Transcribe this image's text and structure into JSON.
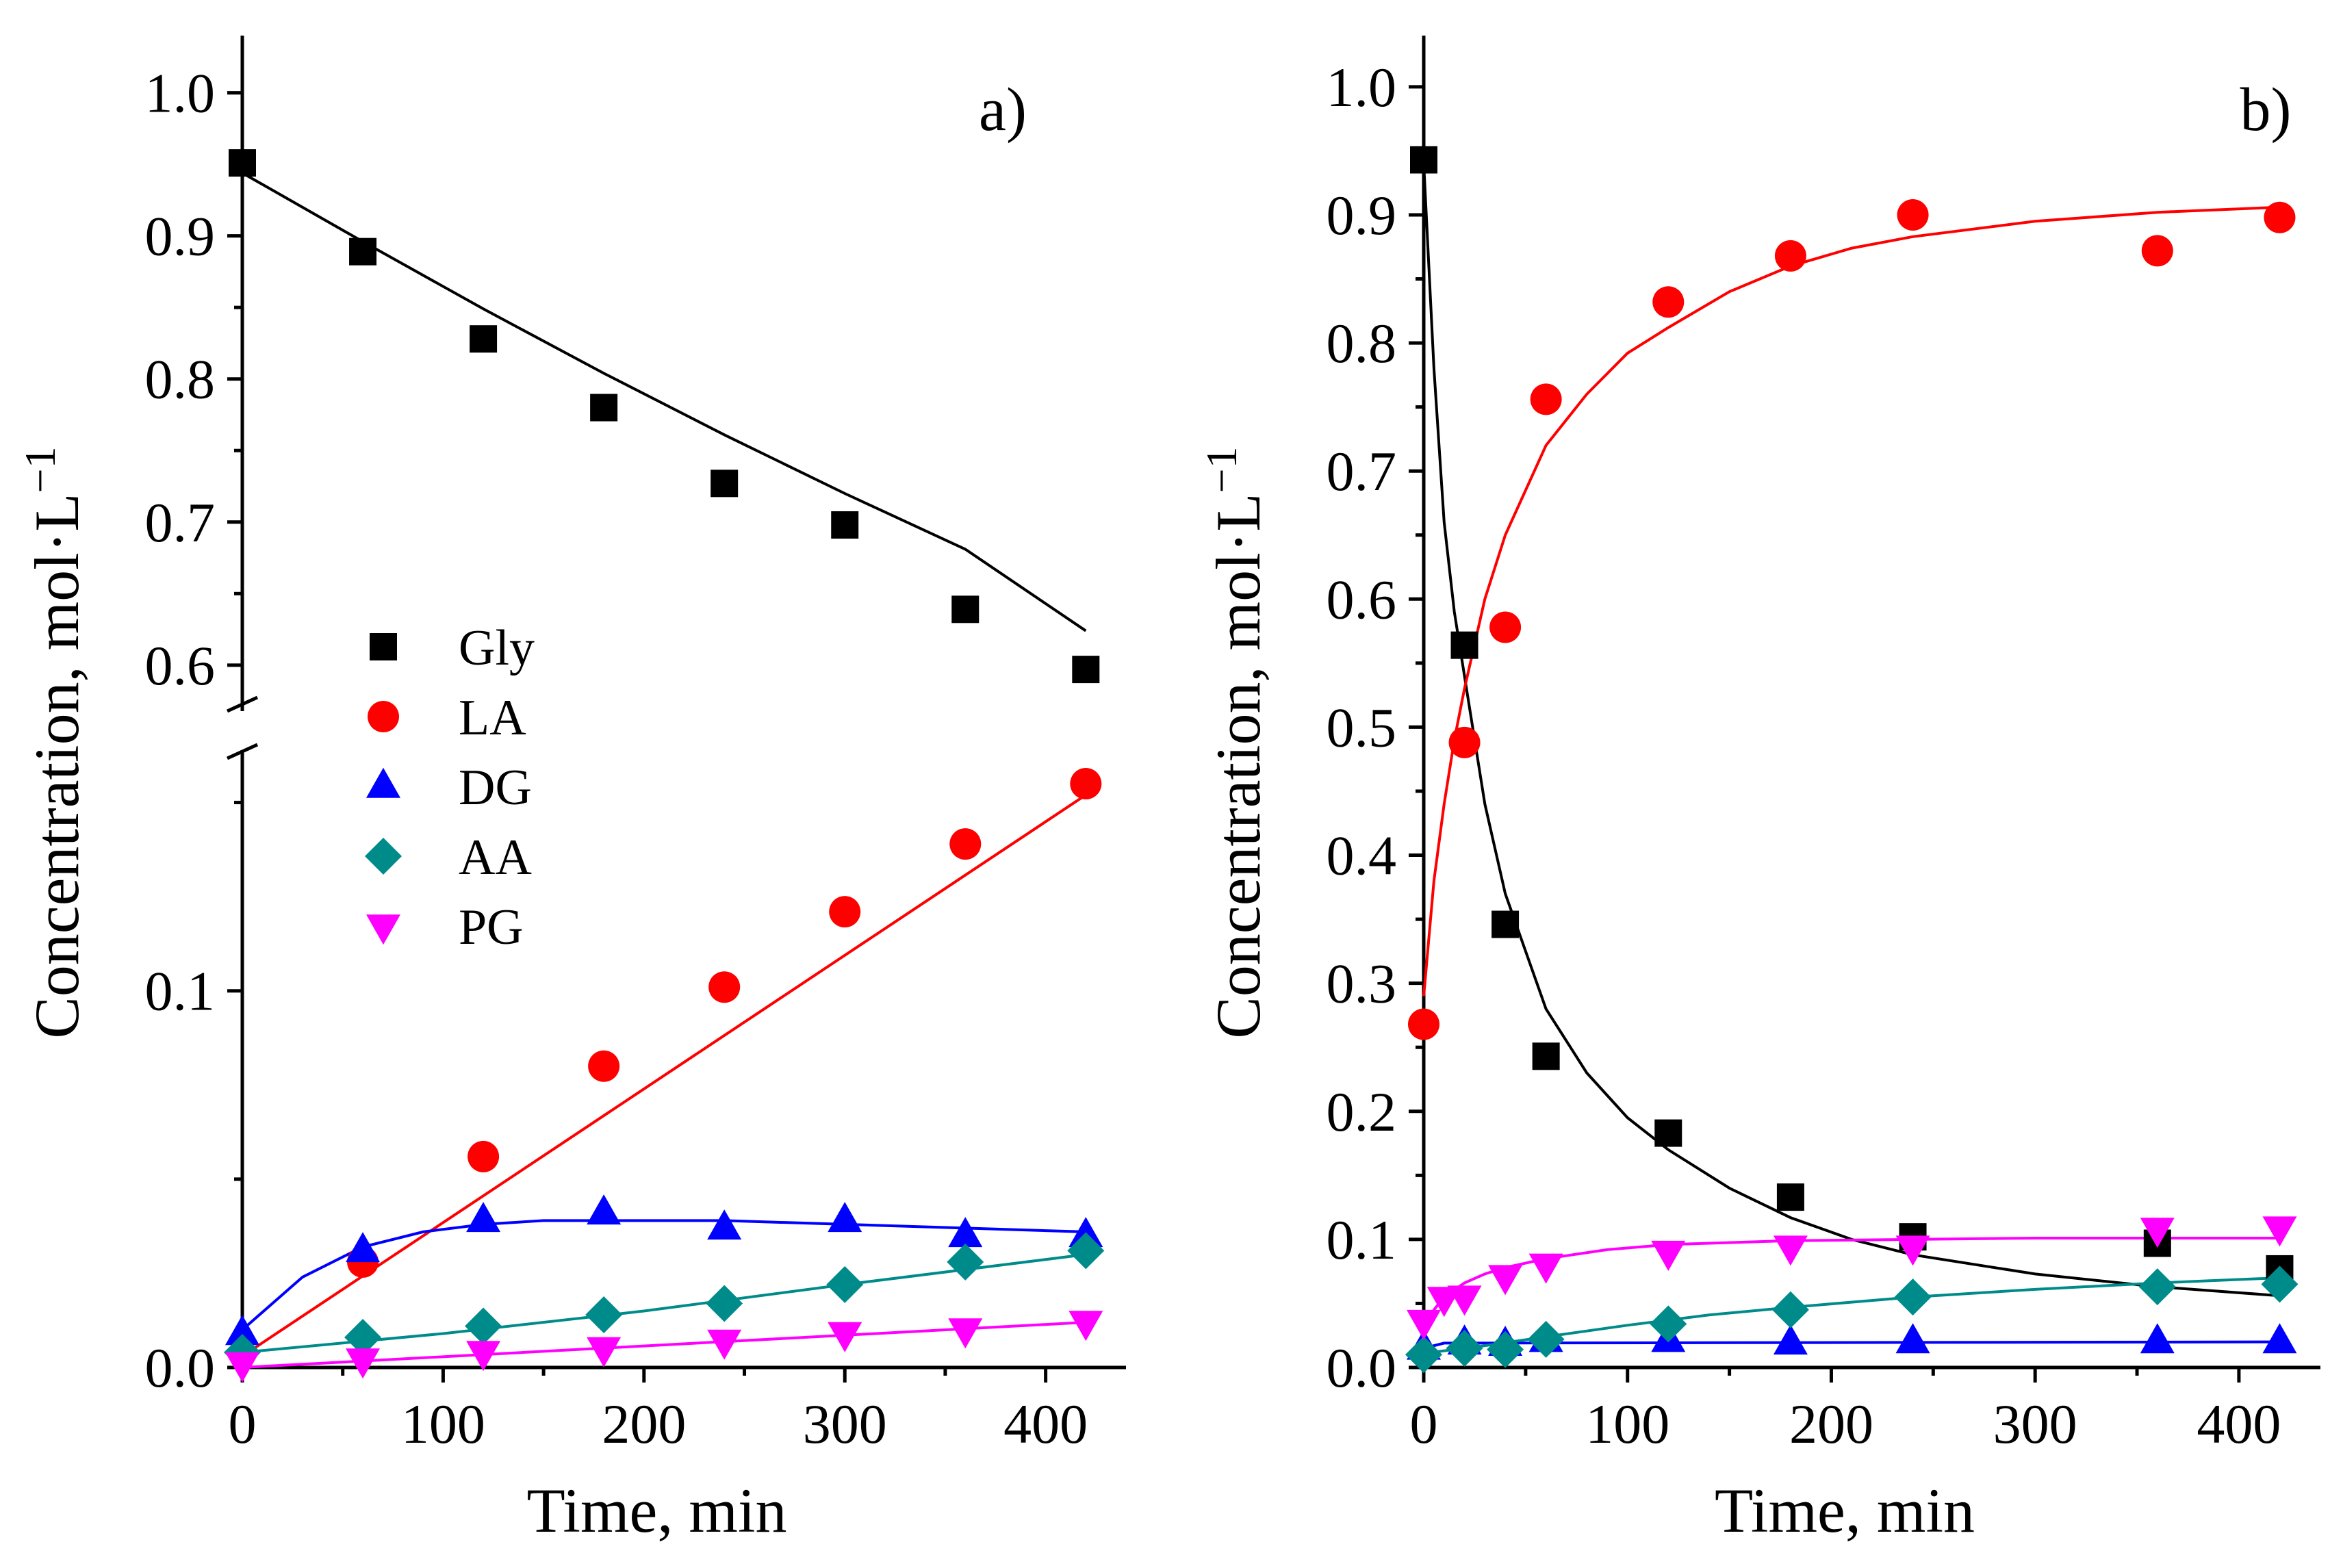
{
  "chart_data": [
    {
      "type": "scatter",
      "panel_label": "a)",
      "xlabel": "Time, min",
      "ylabel": "Concentration, mol·L",
      "ylabel_sup": "−1",
      "xlim": [
        0,
        440
      ],
      "ylim": [
        0,
        1.04
      ],
      "axis_break": [
        0.165,
        0.565
      ],
      "x_ticks": [
        0,
        100,
        200,
        300,
        400
      ],
      "x_tick_labels": [
        "0",
        "100",
        "200",
        "300",
        "400"
      ],
      "y_ticks": [
        0.0,
        0.1,
        0.6,
        0.7,
        0.8,
        0.9,
        1.0
      ],
      "y_tick_labels": [
        "0.0",
        "0.1",
        "0.6",
        "0.7",
        "0.8",
        "0.9",
        "1.0"
      ],
      "legend_position": "center-left",
      "series": [
        {
          "name": "Gly",
          "marker": "square",
          "color": "#000000",
          "x": [
            0,
            60,
            120,
            180,
            240,
            300,
            360,
            420
          ],
          "y": [
            0.951,
            0.889,
            0.828,
            0.78,
            0.727,
            0.698,
            0.639,
            0.597
          ],
          "fit_x": [
            0,
            60,
            120,
            180,
            240,
            300,
            360,
            420
          ],
          "fit_y": [
            0.944,
            0.896,
            0.849,
            0.804,
            0.761,
            0.72,
            0.681,
            0.624
          ]
        },
        {
          "name": "LA",
          "marker": "circle",
          "color": "#ff0000",
          "x": [
            60,
            120,
            180,
            240,
            300,
            360,
            420
          ],
          "y": [
            0.028,
            0.056,
            0.08,
            0.101,
            0.121,
            0.139,
            0.155
          ],
          "fit_x": [
            0,
            420
          ],
          "fit_y": [
            0.003,
            0.152
          ]
        },
        {
          "name": "DG",
          "marker": "triangle-up",
          "color": "#0000ff",
          "x": [
            0,
            60,
            120,
            180,
            240,
            300,
            360,
            420
          ],
          "y": [
            0.009,
            0.031,
            0.039,
            0.041,
            0.037,
            0.039,
            0.035,
            0.035
          ],
          "fit_x": [
            0,
            30,
            60,
            90,
            120,
            150,
            180,
            240,
            300,
            360,
            420
          ],
          "fit_y": [
            0.01,
            0.024,
            0.032,
            0.036,
            0.038,
            0.039,
            0.039,
            0.039,
            0.038,
            0.037,
            0.036
          ]
        },
        {
          "name": "AA",
          "marker": "diamond",
          "color": "#008b8b",
          "x": [
            0,
            60,
            120,
            180,
            240,
            300,
            360,
            420
          ],
          "y": [
            0.004,
            0.008,
            0.011,
            0.014,
            0.017,
            0.022,
            0.028,
            0.031
          ],
          "fit_x": [
            0,
            100,
            200,
            300,
            420
          ],
          "fit_y": [
            0.004,
            0.009,
            0.015,
            0.022,
            0.03
          ]
        },
        {
          "name": "PG",
          "marker": "triangle-down",
          "color": "#ff00ff",
          "x": [
            0,
            60,
            120,
            180,
            240,
            300,
            360,
            420
          ],
          "y": [
            0.001,
            0.002,
            0.004,
            0.005,
            0.007,
            0.009,
            0.01,
            0.012
          ],
          "fit_x": [
            0,
            420
          ],
          "fit_y": [
            0.0,
            0.012
          ]
        }
      ]
    },
    {
      "type": "scatter",
      "panel_label": "b)",
      "xlabel": "Time, min",
      "ylabel": "Concentration, mol·L",
      "ylabel_sup": "−1",
      "xlim": [
        0,
        440
      ],
      "ylim": [
        0,
        1.04
      ],
      "x_ticks": [
        0,
        100,
        200,
        300,
        400
      ],
      "x_tick_labels": [
        "0",
        "100",
        "200",
        "300",
        "400"
      ],
      "y_ticks": [
        0.0,
        0.1,
        0.2,
        0.3,
        0.4,
        0.5,
        0.6,
        0.7,
        0.8,
        0.9,
        1.0
      ],
      "y_tick_labels": [
        "0.0",
        "0.1",
        "0.2",
        "0.3",
        "0.4",
        "0.5",
        "0.6",
        "0.7",
        "0.8",
        "0.9",
        "1.0"
      ],
      "series": [
        {
          "name": "Gly",
          "marker": "square",
          "color": "#000000",
          "x": [
            0,
            20,
            40,
            60,
            120,
            180,
            240,
            360,
            420
          ],
          "y": [
            0.943,
            0.564,
            0.346,
            0.243,
            0.183,
            0.133,
            0.102,
            0.097,
            0.077
          ],
          "fit_x": [
            0,
            5,
            10,
            15,
            20,
            30,
            40,
            60,
            80,
            100,
            120,
            150,
            180,
            210,
            240,
            300,
            360,
            420
          ],
          "fit_y": [
            0.94,
            0.78,
            0.66,
            0.59,
            0.54,
            0.44,
            0.37,
            0.28,
            0.23,
            0.195,
            0.17,
            0.14,
            0.117,
            0.1,
            0.088,
            0.073,
            0.063,
            0.056
          ]
        },
        {
          "name": "LA",
          "marker": "circle",
          "color": "#ff0000",
          "x": [
            0,
            20,
            40,
            60,
            120,
            180,
            240,
            360,
            420
          ],
          "y": [
            0.268,
            0.488,
            0.578,
            0.756,
            0.832,
            0.868,
            0.9,
            0.872,
            0.898
          ],
          "fit_x": [
            0,
            5,
            10,
            15,
            20,
            30,
            40,
            60,
            80,
            100,
            120,
            150,
            180,
            210,
            240,
            300,
            360,
            420
          ],
          "fit_y": [
            0.29,
            0.38,
            0.44,
            0.49,
            0.53,
            0.6,
            0.65,
            0.72,
            0.76,
            0.792,
            0.812,
            0.84,
            0.86,
            0.874,
            0.883,
            0.895,
            0.902,
            0.906
          ]
        },
        {
          "name": "DG",
          "marker": "triangle-up",
          "color": "#0000ff",
          "x": [
            0,
            20,
            40,
            60,
            120,
            180,
            240,
            360,
            420
          ],
          "y": [
            0.015,
            0.019,
            0.018,
            0.021,
            0.021,
            0.019,
            0.02,
            0.02,
            0.02
          ],
          "fit_x": [
            0,
            10,
            420
          ],
          "fit_y": [
            0.015,
            0.019,
            0.02
          ]
        },
        {
          "name": "AA",
          "marker": "diamond",
          "color": "#008b8b",
          "x": [
            0,
            20,
            40,
            60,
            120,
            180,
            240,
            360,
            420
          ],
          "y": [
            0.01,
            0.015,
            0.014,
            0.022,
            0.034,
            0.045,
            0.055,
            0.063,
            0.065
          ],
          "fit_x": [
            0,
            30,
            60,
            100,
            140,
            180,
            240,
            300,
            360,
            420
          ],
          "fit_y": [
            0.011,
            0.017,
            0.024,
            0.033,
            0.041,
            0.047,
            0.055,
            0.061,
            0.066,
            0.07
          ]
        },
        {
          "name": "PG",
          "marker": "triangle-down",
          "color": "#ff00ff",
          "x": [
            0,
            10,
            20,
            40,
            60,
            120,
            180,
            240,
            360,
            420
          ],
          "y": [
            0.036,
            0.054,
            0.055,
            0.071,
            0.08,
            0.09,
            0.094,
            0.094,
            0.108,
            0.109
          ],
          "fit_x": [
            0,
            5,
            10,
            20,
            30,
            40,
            60,
            90,
            120,
            180,
            240,
            300,
            420
          ],
          "fit_y": [
            0.03,
            0.045,
            0.055,
            0.066,
            0.073,
            0.078,
            0.085,
            0.092,
            0.096,
            0.099,
            0.1,
            0.101,
            0.101
          ]
        }
      ]
    }
  ]
}
